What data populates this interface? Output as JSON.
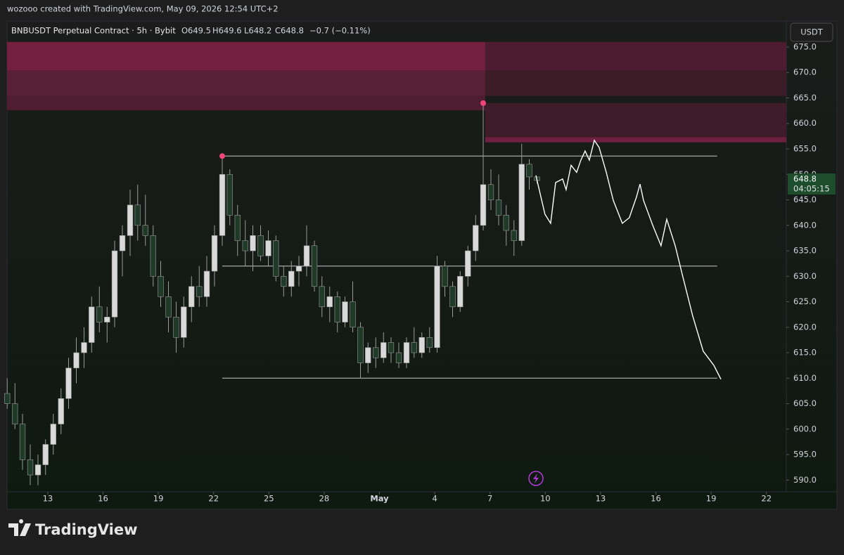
{
  "header": {
    "credit": "wozooo created with TradingView.com, May 09, 2026 12:54 UTC+2"
  },
  "legend": {
    "symbol": "BNBUSDT Perpetual Contract · 5h · Bybit",
    "open": "O649.5",
    "high": "H649.6",
    "low": "L648.2",
    "close": "C648.8",
    "change": "−0.7 (−0.11%)"
  },
  "currency_button": "USDT",
  "countdown": "04:05:15",
  "brand": "TradingView",
  "chart_data": {
    "type": "candlestick",
    "up_color": "#d9d9d9",
    "down_color": "#1f3a26",
    "wick_color": "#9a9a9a",
    "xlim": [
      10.79,
      53.08
    ],
    "ylim": [
      587.7,
      680.1
    ],
    "xticks": [
      13,
      16,
      19,
      22,
      25,
      28,
      {
        "value": 31,
        "label": "May"
      },
      {
        "value": 34,
        "label": "4"
      },
      {
        "value": 37,
        "label": "7"
      },
      {
        "value": 40,
        "label": "10"
      },
      {
        "value": 43,
        "label": "13"
      },
      {
        "value": 46,
        "label": "16"
      },
      {
        "value": 49,
        "label": "19"
      },
      {
        "value": 52,
        "label": "22"
      }
    ],
    "yticks": [
      {
        "value": 590,
        "label": "590.0"
      },
      {
        "value": 595,
        "label": "595.0"
      },
      {
        "value": 600,
        "label": "600.0"
      },
      {
        "value": 605,
        "label": "605.0"
      },
      {
        "value": 610,
        "label": "610.0"
      },
      {
        "value": 615,
        "label": "615.0"
      },
      {
        "value": 620,
        "label": "620.0"
      },
      {
        "value": 625,
        "label": "625.0"
      },
      {
        "value": 630,
        "label": "630.0"
      },
      {
        "value": 635,
        "label": "635.0"
      },
      {
        "value": 640,
        "label": "640.0"
      },
      {
        "value": 645,
        "label": "645.0"
      },
      {
        "value": 650,
        "label": "650.0"
      },
      {
        "value": 655,
        "label": "655.0"
      },
      {
        "value": 660,
        "label": "660.0"
      },
      {
        "value": 665,
        "label": "665.0"
      },
      {
        "value": 670,
        "label": "670.0"
      },
      {
        "value": 675,
        "label": "675.0"
      }
    ],
    "x": [
      10.8,
      11.22,
      11.63,
      12.05,
      12.47,
      12.88,
      13.3,
      13.72,
      14.13,
      14.55,
      14.97,
      15.38,
      15.8,
      16.22,
      16.63,
      17.05,
      17.47,
      17.88,
      18.3,
      18.72,
      19.13,
      19.55,
      19.97,
      20.38,
      20.8,
      21.22,
      21.63,
      22.05,
      22.47,
      22.88,
      23.3,
      23.72,
      24.13,
      24.55,
      24.97,
      25.38,
      25.8,
      26.22,
      26.63,
      27.05,
      27.47,
      27.88,
      28.3,
      28.72,
      29.13,
      29.55,
      29.97,
      30.38,
      30.8,
      31.22,
      31.63,
      32.05,
      32.47,
      32.88,
      33.3,
      33.72,
      34.13,
      34.55,
      34.97,
      35.38,
      35.8,
      36.22,
      36.63,
      37.05,
      37.47,
      37.88,
      38.3,
      38.72,
      39.13,
      39.55
    ],
    "open": [
      607,
      605,
      601,
      594,
      591,
      593,
      597,
      601,
      606,
      612,
      615,
      617,
      624,
      621,
      622,
      635,
      638,
      644,
      640,
      638,
      630,
      626,
      622,
      618,
      624,
      628,
      626,
      631,
      638,
      650,
      642,
      637,
      635,
      638,
      634,
      637,
      630,
      628,
      631,
      632,
      636,
      628,
      624,
      626,
      621,
      625,
      620,
      613,
      616,
      614,
      617,
      615,
      613,
      617,
      615,
      618,
      616,
      632,
      628,
      624,
      630,
      635,
      640,
      648,
      645,
      642,
      639,
      637,
      652,
      649.5
    ],
    "high": [
      610,
      609,
      603,
      597,
      595,
      598,
      603,
      608,
      614,
      618,
      620,
      626,
      628,
      624,
      637,
      640,
      647,
      648,
      646,
      640,
      633,
      629,
      625,
      626,
      630,
      632,
      634,
      640,
      653.6,
      651,
      644,
      641,
      640,
      640,
      639,
      638,
      632,
      633,
      634,
      640,
      637,
      630,
      628,
      627,
      626,
      629,
      621,
      617,
      618,
      619,
      618,
      617,
      618,
      620,
      619,
      620,
      634,
      633,
      629,
      631,
      636,
      642,
      664,
      651,
      650,
      644,
      641,
      656,
      653,
      649.6
    ],
    "low": [
      604,
      600,
      592,
      589,
      589,
      591,
      595,
      599,
      604,
      609,
      612,
      615,
      619,
      617,
      620,
      630,
      634,
      637,
      636,
      628,
      624,
      619,
      615,
      616,
      621,
      624,
      624,
      628,
      636,
      640,
      634,
      632,
      631,
      633,
      632,
      629,
      626,
      626,
      628,
      630,
      627,
      622,
      621,
      619,
      620,
      619,
      610,
      611,
      612,
      613,
      613,
      612,
      612,
      614,
      614,
      615,
      615,
      626,
      622,
      623,
      628,
      633,
      639,
      643,
      640,
      636,
      634,
      636,
      647,
      648.2
    ],
    "close": [
      605,
      601,
      594,
      591,
      593,
      597,
      601,
      606,
      612,
      615,
      617,
      624,
      621,
      622,
      635,
      638,
      644,
      640,
      638,
      630,
      626,
      622,
      618,
      624,
      628,
      626,
      631,
      638,
      650,
      642,
      637,
      635,
      638,
      634,
      637,
      630,
      628,
      631,
      632,
      636,
      628,
      624,
      626,
      621,
      625,
      620,
      613,
      616,
      614,
      617,
      615,
      613,
      617,
      615,
      618,
      616,
      632,
      628,
      624,
      630,
      635,
      640,
      648,
      645,
      642,
      639,
      637,
      652,
      649.5,
      648.8
    ],
    "last_price": 648.8,
    "zones": [
      {
        "x": [
          10.79,
          36.74
        ],
        "y": [
          670.4,
          676
        ],
        "color": "#74203f"
      },
      {
        "x": [
          10.79,
          36.74
        ],
        "y": [
          665.4,
          670.4
        ],
        "color": "#5a2036"
      },
      {
        "x": [
          10.79,
          36.74
        ],
        "y": [
          662.6,
          665.4
        ],
        "color": "#4f1d31"
      },
      {
        "x": [
          36.74,
          53.08
        ],
        "y": [
          670.4,
          676
        ],
        "color": "#4e1c30"
      },
      {
        "x": [
          36.74,
          53.08
        ],
        "y": [
          665.4,
          670.4
        ],
        "color": "#3b1c27"
      },
      {
        "x": [
          36.74,
          53.08
        ],
        "y": [
          657.3,
          664
        ],
        "color": "#3e1c2a"
      },
      {
        "x": [
          36.74,
          53.08
        ],
        "y": [
          656.3,
          657.3
        ],
        "color": "#6e2040"
      }
    ],
    "levels": [
      {
        "value": 653.6,
        "x": [
          22.47,
          49.33
        ]
      },
      {
        "value": 632,
        "x": [
          22.47,
          49.33
        ]
      },
      {
        "value": 610,
        "x": [
          22.47,
          49.33
        ]
      }
    ],
    "markers": {
      "color": "#f0467a",
      "x": [
        22.47,
        36.63
      ],
      "y": [
        653.6,
        664
      ]
    },
    "projection": {
      "color": "#ffffff",
      "x": [
        39.49,
        39.98,
        40.29,
        40.56,
        40.94,
        41.13,
        41.4,
        41.7,
        41.93,
        42.16,
        42.39,
        42.66,
        42.92,
        43.31,
        43.69,
        44.18,
        44.56,
        44.95,
        45.14,
        45.33,
        45.82,
        46.28,
        46.59,
        47.05,
        47.43,
        48.0,
        48.57,
        49.15,
        49.53
      ],
      "y": [
        649.8,
        642.2,
        640.4,
        648.4,
        649.1,
        647.0,
        651.8,
        650.4,
        652.8,
        654.6,
        652.8,
        656.7,
        655.3,
        650.4,
        644.9,
        640.4,
        641.5,
        645.6,
        648.1,
        644.9,
        640.1,
        636.0,
        641.2,
        636.0,
        630.4,
        622.2,
        615.3,
        612.5,
        609.8
      ]
    }
  }
}
